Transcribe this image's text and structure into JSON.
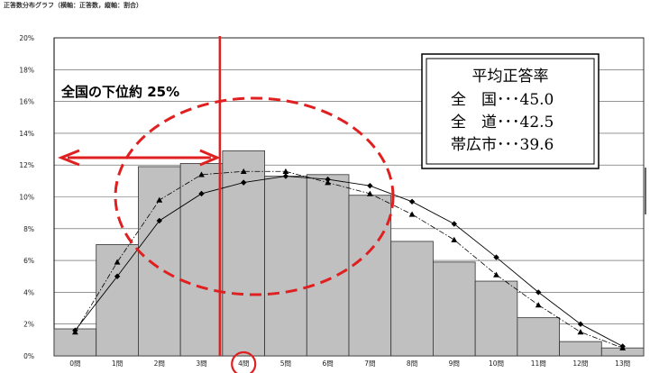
{
  "header": "正答数分布グラフ（横軸：正答数，縦軸：割合）",
  "chart_data": {
    "type": "bar",
    "title": "正答数分布グラフ（横軸：正答数，縦軸：割合）",
    "categories": [
      "0問",
      "1問",
      "2問",
      "3問",
      "4問",
      "5問",
      "6問",
      "7問",
      "8問",
      "9問",
      "10問",
      "11問",
      "12問",
      "13問"
    ],
    "y_ticks": [
      "0%",
      "2%",
      "4%",
      "6%",
      "8%",
      "10%",
      "12%",
      "14%",
      "16%",
      "18%",
      "20%"
    ],
    "ylim": [
      0,
      20
    ],
    "grid": true,
    "series": [
      {
        "style": "bar",
        "values": [
          1.7,
          7.0,
          11.9,
          12.1,
          12.9,
          11.3,
          11.4,
          10.1,
          7.2,
          5.9,
          4.7,
          2.4,
          0.9,
          0.5
        ]
      },
      {
        "style": "line-diamond",
        "values": [
          1.6,
          5.0,
          8.5,
          10.2,
          10.9,
          11.3,
          11.1,
          10.7,
          9.7,
          8.3,
          6.2,
          4.0,
          2.0,
          0.6
        ]
      },
      {
        "style": "dashdot-triangle",
        "values": [
          1.5,
          5.9,
          9.8,
          11.4,
          11.6,
          11.6,
          10.9,
          10.2,
          8.9,
          7.3,
          5.1,
          3.2,
          1.5,
          0.5
        ]
      }
    ],
    "annotations": {
      "bottom25_label": "全国の下位約 25%",
      "average_box": {
        "title": "平均正答率",
        "lines": [
          "全　国･･･45.0",
          "全　道･･･42.5",
          "帯広市･･･39.6"
        ]
      }
    },
    "colors": {
      "bar": "#c0c0c0",
      "accent": "#e02020",
      "line": "#000000"
    }
  }
}
